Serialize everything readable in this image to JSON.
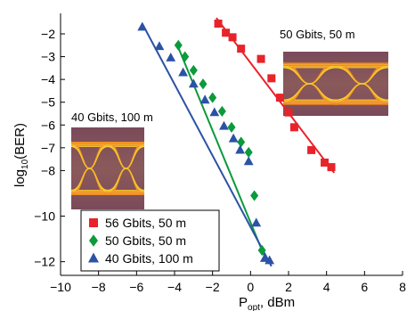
{
  "chart_data": {
    "type": "scatter",
    "title": "",
    "xlabel_main": "P",
    "xlabel_sub": "opt",
    "xlabel_unit": ", dBm",
    "ylabel_main": "log",
    "ylabel_sub": "10",
    "ylabel_rest": "(BER)",
    "xlim": [
      -10,
      8
    ],
    "ylim": [
      -12.6,
      -1.1
    ],
    "x_ticks": [
      -10,
      -8,
      -6,
      -4,
      -2,
      0,
      2,
      4,
      6,
      8
    ],
    "x_tick_labels": [
      "−10",
      "−8",
      "−6",
      "−4",
      "−2",
      "0",
      "2",
      "4",
      "6",
      "8"
    ],
    "y_ticks": [
      -2,
      -3,
      -4,
      -5,
      -6,
      -7,
      -8,
      -10,
      -12
    ],
    "y_tick_labels": [
      "−2",
      "−3",
      "−4",
      "−5",
      "−6",
      "−7",
      "−8",
      "−10",
      "−12"
    ],
    "grid": false,
    "legend_placement": "bottom-left",
    "series": [
      {
        "name": "56 Gbits, 50 m",
        "marker": "square",
        "color": "#e8232a",
        "points": [
          [
            -1.7,
            -1.55
          ],
          [
            -1.3,
            -1.95
          ],
          [
            -0.95,
            -2.15
          ],
          [
            -0.5,
            -2.65
          ],
          [
            0.55,
            -3.1
          ],
          [
            1.1,
            -3.95
          ],
          [
            1.55,
            -4.8
          ],
          [
            2.0,
            -5.45
          ],
          [
            2.3,
            -6.1
          ],
          [
            3.2,
            -7.1
          ],
          [
            3.9,
            -7.65
          ],
          [
            4.25,
            -7.85
          ]
        ],
        "fit": [
          [
            -1.8,
            -1.3
          ],
          [
            4.4,
            -8.1
          ]
        ]
      },
      {
        "name": "50 Gbits, 50 m",
        "marker": "diamond",
        "color": "#0b9a3c",
        "points": [
          [
            -3.8,
            -2.5
          ],
          [
            -3.45,
            -3.0
          ],
          [
            -3.0,
            -3.6
          ],
          [
            -2.5,
            -4.2
          ],
          [
            -2.0,
            -4.8
          ],
          [
            -1.5,
            -5.4
          ],
          [
            -1.0,
            -6.1
          ],
          [
            -0.5,
            -6.75
          ],
          [
            -0.1,
            -7.2
          ],
          [
            0.2,
            -9.1
          ],
          [
            0.6,
            -11.5
          ]
        ],
        "fit": [
          [
            -3.9,
            -2.4
          ],
          [
            0.8,
            -11.9
          ]
        ]
      },
      {
        "name": "40 Gbits, 100 m",
        "marker": "triangle",
        "color": "#2b52a5",
        "points": [
          [
            -5.7,
            -1.7
          ],
          [
            -4.8,
            -2.55
          ],
          [
            -4.2,
            -3.05
          ],
          [
            -3.55,
            -3.7
          ],
          [
            -3.0,
            -4.2
          ],
          [
            -2.4,
            -4.9
          ],
          [
            -1.9,
            -5.45
          ],
          [
            -1.4,
            -6.05
          ],
          [
            -0.9,
            -6.6
          ],
          [
            -0.55,
            -7.1
          ],
          [
            -0.1,
            -7.6
          ],
          [
            0.3,
            -10.3
          ],
          [
            0.75,
            -11.85
          ],
          [
            1.0,
            -11.95
          ]
        ],
        "fit": [
          [
            -5.7,
            -1.55
          ],
          [
            1.1,
            -12.2
          ]
        ]
      }
    ],
    "annotations": [
      {
        "text": "50 Gbits, 50 m",
        "placement": "top-right, above eye diagram"
      },
      {
        "text": "40 Gbits, 100 m",
        "placement": "middle-left, above eye diagram"
      }
    ]
  }
}
